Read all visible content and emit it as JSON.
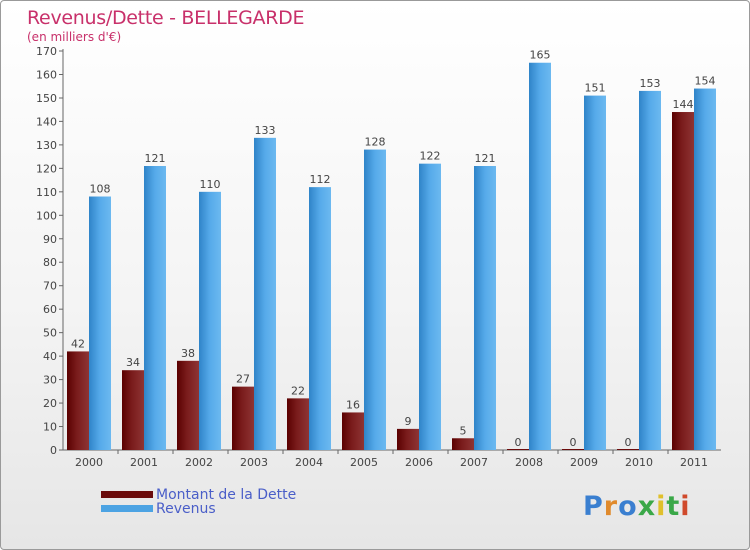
{
  "chart_data": {
    "type": "bar",
    "title": "Revenus/Dette - BELLEGARDE",
    "subtitle": "(en milliers d'€)",
    "categories": [
      "2000",
      "2001",
      "2002",
      "2003",
      "2004",
      "2005",
      "2006",
      "2007",
      "2008",
      "2009",
      "2010",
      "2011"
    ],
    "series": [
      {
        "name": "Montant de la Dette",
        "values": [
          42,
          34,
          38,
          27,
          22,
          16,
          9,
          5,
          0,
          0,
          0,
          144
        ],
        "color": "#6b0b0b"
      },
      {
        "name": "Revenus",
        "values": [
          108,
          121,
          110,
          133,
          112,
          128,
          122,
          121,
          165,
          151,
          153,
          154
        ],
        "color": "#4ca3e3"
      }
    ],
    "ylim": [
      0,
      170
    ],
    "yticks": [
      0,
      10,
      20,
      30,
      40,
      50,
      60,
      70,
      80,
      90,
      100,
      110,
      120,
      130,
      140,
      150,
      160,
      170
    ],
    "grid": false,
    "legend_position": "bottom-left"
  },
  "logo": {
    "letters": [
      "P",
      "r",
      "o",
      "x",
      "i",
      "t",
      "i"
    ],
    "colors": [
      "#3a7fd0",
      "#e08a2c",
      "#3a7fd0",
      "#3aa848",
      "#e0c02c",
      "#3aa848",
      "#d04a2c"
    ]
  }
}
